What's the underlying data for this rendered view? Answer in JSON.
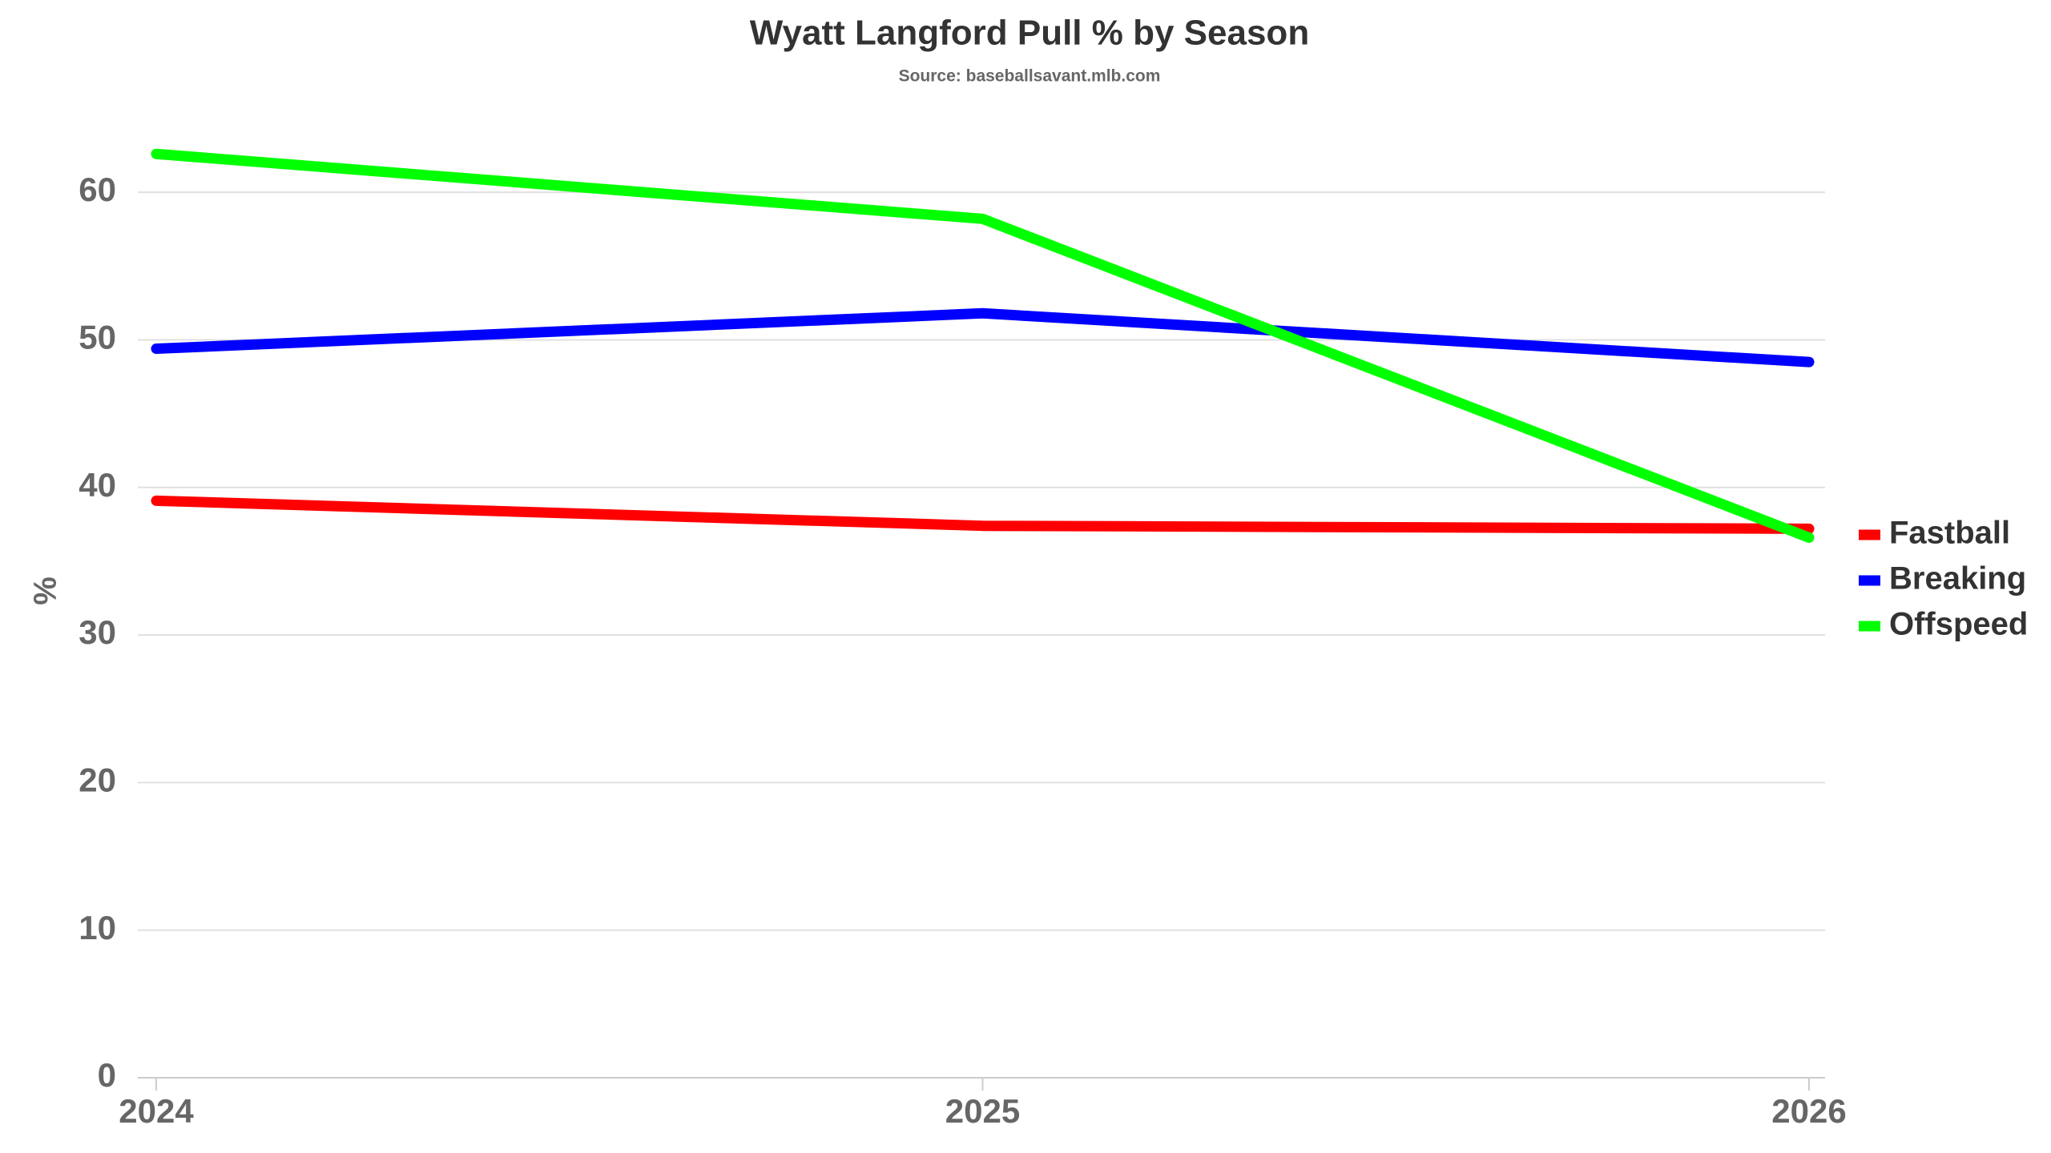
{
  "chart_data": {
    "type": "line",
    "title": "Wyatt Langford Pull % by Season",
    "subtitle": "Source: baseballsavant.mlb.com",
    "y_label": "%",
    "x": [
      2024,
      2025,
      2026
    ],
    "xlim": [
      2024,
      2026
    ],
    "xticks": [
      2024,
      2025,
      2026
    ],
    "ylim": [
      0,
      65
    ],
    "yticks": [
      0,
      10,
      20,
      30,
      40,
      50,
      60
    ],
    "grid": true,
    "legend": "right",
    "series": [
      {
        "name": "Fastball",
        "color": "#ff0000",
        "values": [
          39.1,
          37.4,
          37.2
        ]
      },
      {
        "name": "Breaking",
        "color": "#0000ff",
        "values": [
          49.4,
          51.8,
          48.5
        ]
      },
      {
        "name": "Offspeed",
        "color": "#00ff00",
        "values": [
          62.6,
          58.2,
          36.6
        ]
      }
    ]
  }
}
